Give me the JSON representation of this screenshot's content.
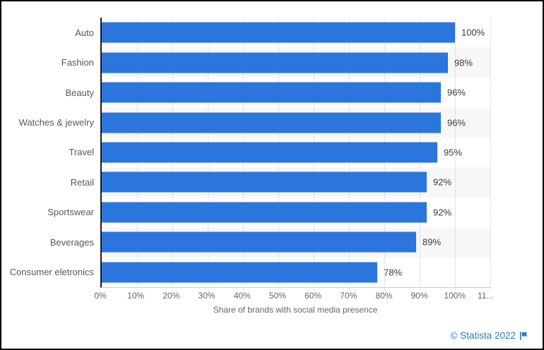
{
  "chart_data": {
    "type": "bar",
    "orientation": "horizontal",
    "categories": [
      "Auto",
      "Fashion",
      "Beauty",
      "Watches & jewelry",
      "Travel",
      "Retail",
      "Sportswear",
      "Beverages",
      "Consumer eletronics"
    ],
    "values": [
      100,
      98,
      96,
      96,
      95,
      92,
      92,
      89,
      78
    ],
    "value_labels": [
      "100%",
      "98%",
      "96%",
      "96%",
      "95%",
      "92%",
      "92%",
      "89%",
      "78%"
    ],
    "xlabel": "Share of brands with social media presence",
    "xlim": [
      0,
      110
    ],
    "xticks": [
      0,
      10,
      20,
      30,
      40,
      50,
      60,
      70,
      80,
      90,
      100,
      110
    ],
    "xtick_labels": [
      "0%",
      "10%",
      "20%",
      "30%",
      "40%",
      "50%",
      "60%",
      "70%",
      "80%",
      "90%",
      "100%",
      "11..."
    ],
    "grid": "vertical-dotted",
    "legend_position": "none",
    "colors": {
      "bar": "#2B76DD",
      "band": "#F7F7F7",
      "gridline": "#CCCCCC",
      "axis": "#1A1A1A"
    }
  },
  "footer": {
    "credit": "© Statista 2022",
    "credit_color": "#2D7AC9",
    "flag_icon": "flag-icon"
  }
}
